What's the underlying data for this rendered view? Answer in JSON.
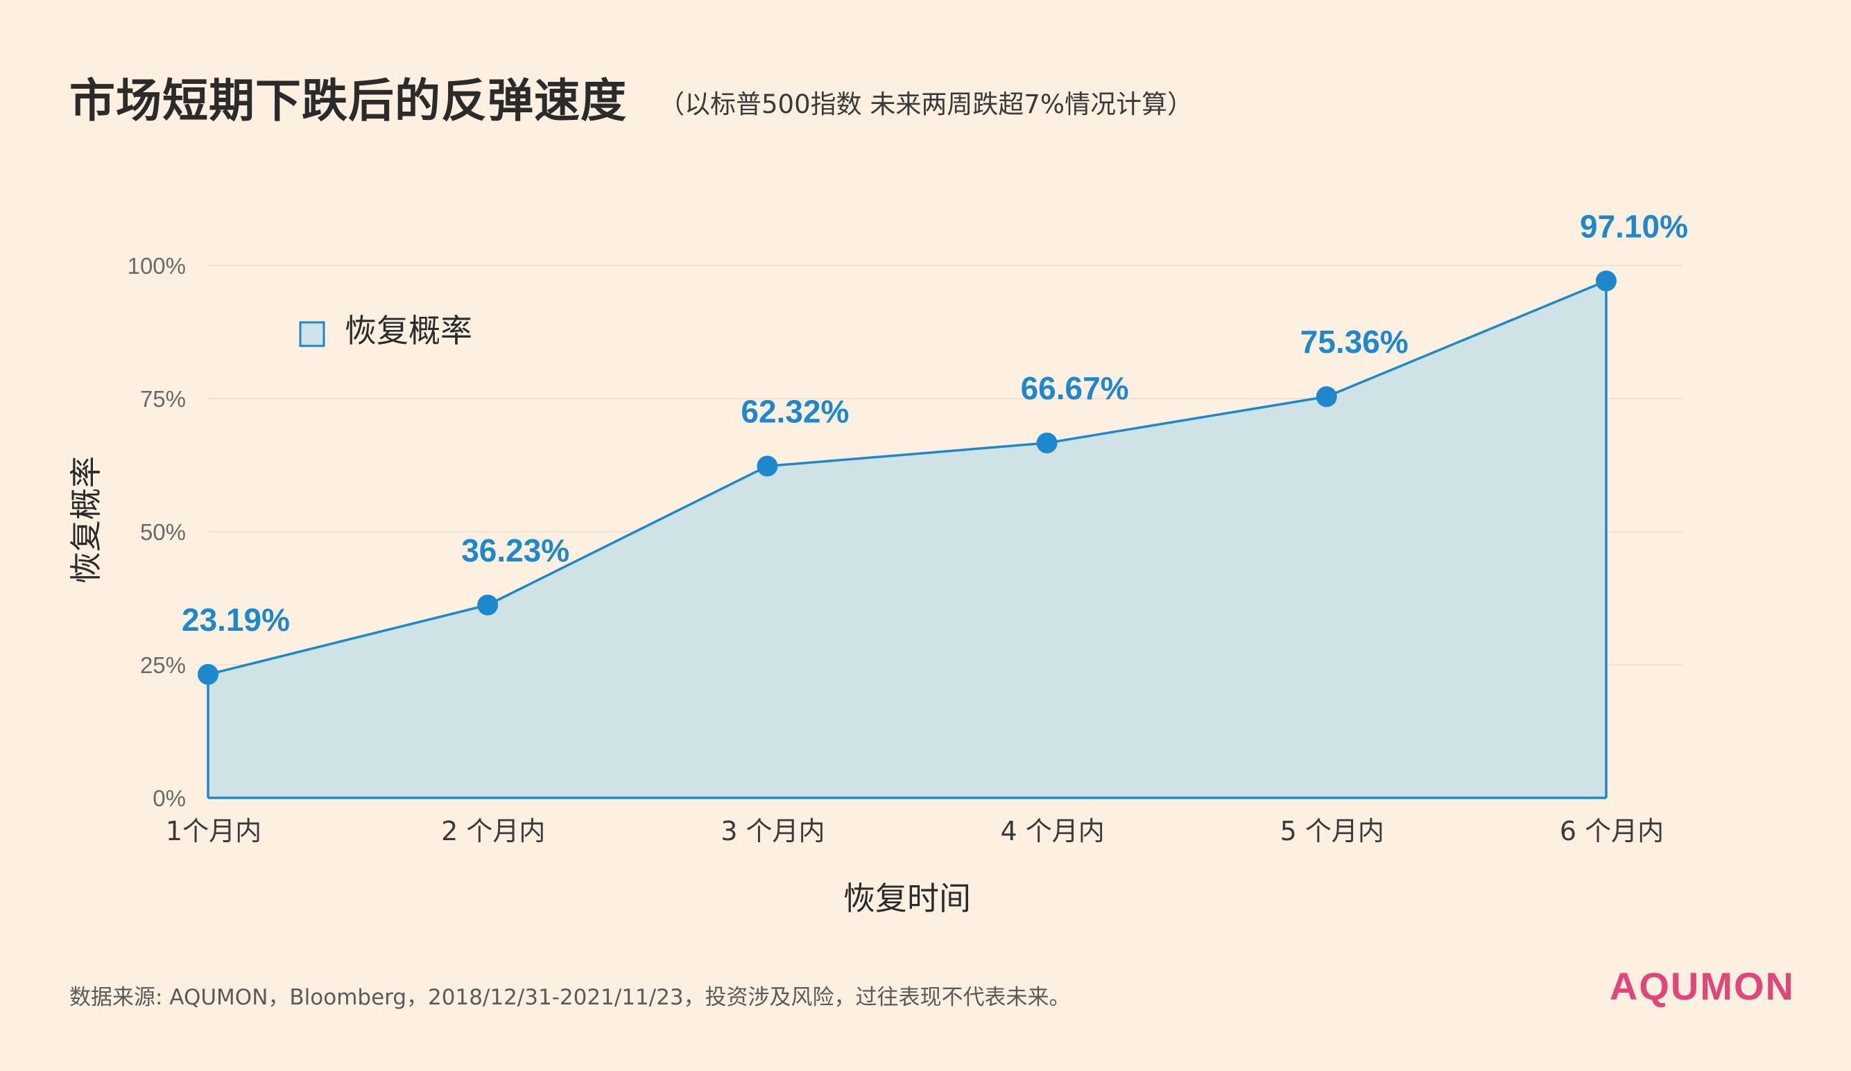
{
  "header": {
    "title": "市场短期下跌后的反弹速度",
    "subtitle": "（以标普500指数 未来两周跌超7%情况计算）"
  },
  "footer": {
    "source": "数据来源: AQUMON，Bloomberg，2018/12/31-2021/11/23，投资涉及风险，过往表现不代表未来。",
    "brand": "AQUMON"
  },
  "colors": {
    "background": "#fdf0e0",
    "line": "#1e88cf",
    "area": "#cfe3e6",
    "label": "#1e88cf",
    "brand": "#e0457b"
  },
  "chart_data": {
    "type": "area",
    "categories": [
      "1个月内",
      "2 个月内",
      "3 个月内",
      "4 个月内",
      "5 个月内",
      "6 个月内"
    ],
    "series": [
      {
        "name": "恢复概率",
        "values": [
          23.19,
          36.23,
          62.32,
          66.67,
          75.36,
          97.1
        ],
        "labels": [
          "23.19%",
          "36.23%",
          "62.32%",
          "66.67%",
          "75.36%",
          "97.10%"
        ]
      }
    ],
    "ylim": [
      0,
      100
    ],
    "yticks": [
      0,
      25,
      50,
      75,
      100
    ],
    "ytick_labels": [
      "0%",
      "25%",
      "50%",
      "75%",
      "100%"
    ],
    "xlabel": "恢复时间",
    "ylabel": "恢复概率",
    "legend_position": "top-left",
    "grid": true
  }
}
